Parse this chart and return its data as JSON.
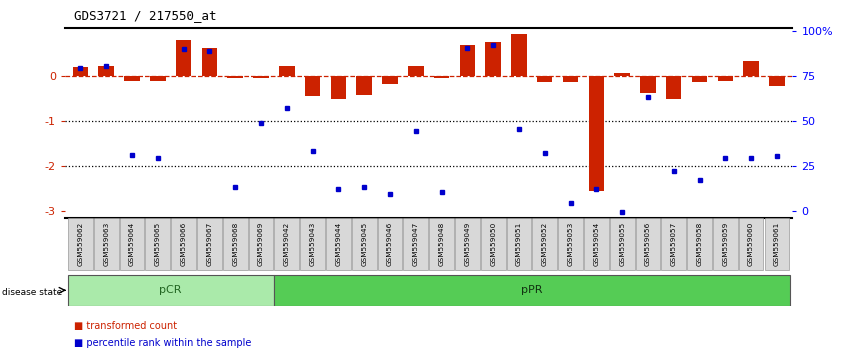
{
  "title": "GDS3721 / 217550_at",
  "samples": [
    "GSM559062",
    "GSM559063",
    "GSM559064",
    "GSM559065",
    "GSM559066",
    "GSM559067",
    "GSM559068",
    "GSM559069",
    "GSM559042",
    "GSM559043",
    "GSM559044",
    "GSM559045",
    "GSM559046",
    "GSM559047",
    "GSM559048",
    "GSM559049",
    "GSM559050",
    "GSM559051",
    "GSM559052",
    "GSM559053",
    "GSM559054",
    "GSM559055",
    "GSM559056",
    "GSM559057",
    "GSM559058",
    "GSM559059",
    "GSM559060",
    "GSM559061"
  ],
  "red_bars": [
    0.2,
    0.22,
    -0.12,
    -0.12,
    0.78,
    0.62,
    -0.05,
    -0.05,
    0.22,
    -0.45,
    -0.52,
    -0.42,
    -0.18,
    0.22,
    -0.06,
    0.68,
    0.75,
    0.92,
    -0.14,
    -0.14,
    -2.55,
    0.05,
    -0.38,
    -0.52,
    -0.14,
    -0.12,
    0.32,
    -0.22
  ],
  "blue_dots": [
    0.18,
    0.22,
    -1.75,
    -1.82,
    0.6,
    0.55,
    -2.48,
    -1.05,
    -0.72,
    -1.68,
    -2.52,
    -2.48,
    -2.62,
    -1.22,
    -2.58,
    0.62,
    0.68,
    -1.18,
    -1.72,
    -2.82,
    -2.52,
    -3.02,
    -0.48,
    -2.12,
    -2.32,
    -1.82,
    -1.82,
    -1.78
  ],
  "pCR_count": 8,
  "pPR_count": 20,
  "bar_color": "#cc2200",
  "dot_color": "#0000cc",
  "dashed_line_color": "#cc2200",
  "background_color": "#ffffff",
  "ylim": [
    -3.15,
    1.05
  ],
  "left_yticks": [
    0,
    -1,
    -2,
    -3
  ],
  "left_yticklabels": [
    "0",
    "-1",
    "-2",
    "-3"
  ],
  "right_ytick_pos": [
    1.0,
    0.0,
    -1.0,
    -2.0,
    -3.0
  ],
  "right_yticklabels": [
    "100%",
    "75",
    "50",
    "25",
    "0"
  ],
  "pcr_color": "#aaeaaa",
  "ppr_color": "#55cc55",
  "label_color_pcr": "#226622",
  "label_color_ppr": "#113311"
}
